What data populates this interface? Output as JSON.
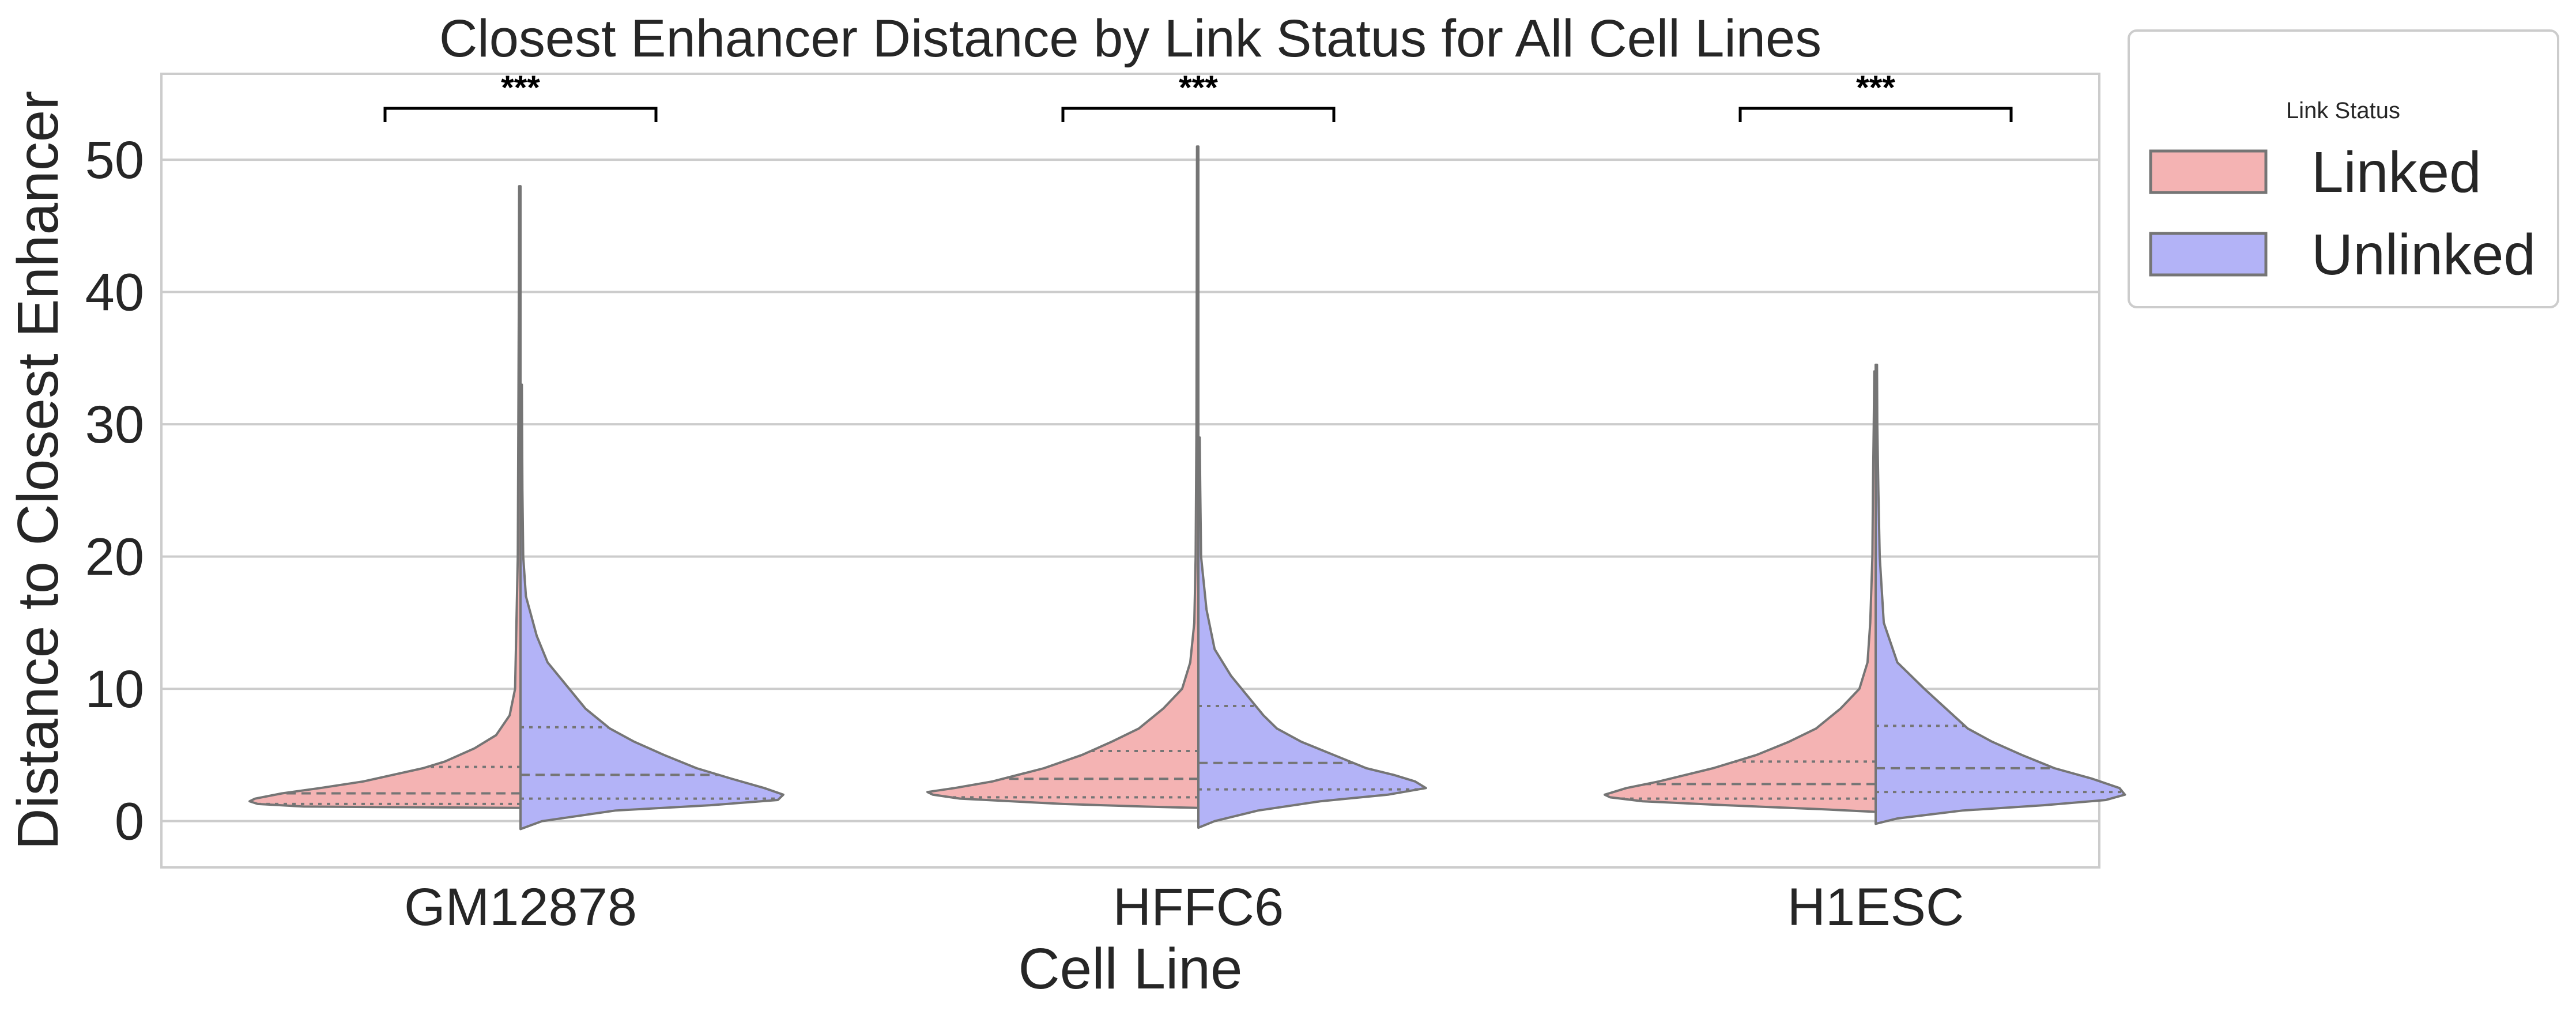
{
  "chart_data": {
    "type": "violin",
    "title": "Closest Enhancer Distance by Link Status for All Cell Lines",
    "xlabel": "Cell Line",
    "ylabel": "Distance to Closest Enhancer",
    "categories": [
      "GM12878",
      "HFFC6",
      "H1ESC"
    ],
    "yticks": [
      "0",
      "10",
      "20",
      "30",
      "40",
      "50"
    ],
    "ylim": [
      -3.5,
      56.5
    ],
    "grid": "horizontal",
    "split": true,
    "inner": "quartile",
    "significance": [
      "***",
      "***",
      "***"
    ],
    "legend": {
      "title": "Link Status",
      "placement": "outside-right-top",
      "entries": [
        "Linked",
        "Unlinked"
      ]
    },
    "colors": {
      "Linked": "#f4b3b3",
      "Unlinked": "#b3b3f7",
      "outline": "#757575",
      "grid": "#cccccc",
      "frame": "#cccccc"
    },
    "series": [
      {
        "name": "Linked",
        "violins": [
          {
            "category": "GM12878",
            "min": 1.0,
            "max": 48.0,
            "q1": 1.3,
            "median": 2.1,
            "q3": 4.1,
            "density": [
              [
                48,
                0.005
              ],
              [
                40,
                0.006
              ],
              [
                30,
                0.008
              ],
              [
                20,
                0.01
              ],
              [
                15,
                0.015
              ],
              [
                10,
                0.02
              ],
              [
                8,
                0.04
              ],
              [
                6.5,
                0.09
              ],
              [
                5.5,
                0.17
              ],
              [
                4.5,
                0.28
              ],
              [
                4,
                0.36
              ],
              [
                3.5,
                0.47
              ],
              [
                3,
                0.58
              ],
              [
                2.5,
                0.74
              ],
              [
                2.1,
                0.88
              ],
              [
                1.7,
                0.98
              ],
              [
                1.5,
                1.0
              ],
              [
                1.3,
                0.97
              ],
              [
                1.1,
                0.8
              ],
              [
                1.0,
                0.0
              ]
            ]
          },
          {
            "category": "HFFC6",
            "min": 1.0,
            "max": 51.0,
            "q1": 1.8,
            "median": 3.2,
            "q3": 5.3,
            "density": [
              [
                51,
                0.005
              ],
              [
                40,
                0.006
              ],
              [
                30,
                0.007
              ],
              [
                20,
                0.01
              ],
              [
                15,
                0.015
              ],
              [
                12,
                0.03
              ],
              [
                10,
                0.06
              ],
              [
                8.5,
                0.13
              ],
              [
                7,
                0.22
              ],
              [
                6,
                0.32
              ],
              [
                5,
                0.43
              ],
              [
                4,
                0.57
              ],
              [
                3,
                0.76
              ],
              [
                2.5,
                0.9
              ],
              [
                2.2,
                1.0
              ],
              [
                2,
                0.98
              ],
              [
                1.7,
                0.88
              ],
              [
                1.3,
                0.5
              ],
              [
                1.1,
                0.2
              ],
              [
                1.0,
                0.0
              ]
            ]
          },
          {
            "category": "H1ESC",
            "min": 0.7,
            "max": 34.0,
            "q1": 1.7,
            "median": 2.8,
            "q3": 4.5,
            "density": [
              [
                34,
                0.005
              ],
              [
                30,
                0.007
              ],
              [
                25,
                0.01
              ],
              [
                20,
                0.012
              ],
              [
                15,
                0.02
              ],
              [
                12,
                0.03
              ],
              [
                10,
                0.06
              ],
              [
                8.5,
                0.13
              ],
              [
                7,
                0.22
              ],
              [
                6,
                0.32
              ],
              [
                5,
                0.44
              ],
              [
                4,
                0.6
              ],
              [
                3,
                0.8
              ],
              [
                2.5,
                0.92
              ],
              [
                2,
                1.0
              ],
              [
                1.8,
                0.98
              ],
              [
                1.5,
                0.86
              ],
              [
                1.2,
                0.55
              ],
              [
                0.9,
                0.2
              ],
              [
                0.7,
                0.0
              ]
            ]
          }
        ]
      },
      {
        "name": "Unlinked",
        "violins": [
          {
            "category": "GM12878",
            "min": -0.6,
            "max": 33.0,
            "q1": 1.7,
            "median": 3.5,
            "q3": 7.1,
            "density": [
              [
                33,
                0.005
              ],
              [
                25,
                0.007
              ],
              [
                20,
                0.01
              ],
              [
                17,
                0.02
              ],
              [
                14,
                0.06
              ],
              [
                12,
                0.1
              ],
              [
                10,
                0.18
              ],
              [
                8.5,
                0.24
              ],
              [
                7,
                0.33
              ],
              [
                6,
                0.42
              ],
              [
                5,
                0.53
              ],
              [
                4,
                0.65
              ],
              [
                3.2,
                0.78
              ],
              [
                2.5,
                0.9
              ],
              [
                2,
                0.97
              ],
              [
                1.6,
                0.95
              ],
              [
                1.2,
                0.7
              ],
              [
                0.8,
                0.35
              ],
              [
                0,
                0.08
              ],
              [
                -0.6,
                0.0
              ]
            ]
          },
          {
            "category": "HFFC6",
            "min": -0.5,
            "max": 29.0,
            "q1": 2.4,
            "median": 4.4,
            "q3": 8.7,
            "density": [
              [
                29,
                0.005
              ],
              [
                25,
                0.007
              ],
              [
                20,
                0.01
              ],
              [
                16,
                0.03
              ],
              [
                13,
                0.06
              ],
              [
                11,
                0.12
              ],
              [
                9,
                0.2
              ],
              [
                8,
                0.24
              ],
              [
                7,
                0.29
              ],
              [
                6,
                0.38
              ],
              [
                5,
                0.5
              ],
              [
                4,
                0.62
              ],
              [
                3.5,
                0.72
              ],
              [
                3,
                0.8
              ],
              [
                2.5,
                0.84
              ],
              [
                2,
                0.7
              ],
              [
                1.5,
                0.45
              ],
              [
                0.8,
                0.22
              ],
              [
                0,
                0.06
              ],
              [
                -0.5,
                0.0
              ]
            ]
          },
          {
            "category": "H1ESC",
            "min": -0.2,
            "max": 34.5,
            "q1": 2.2,
            "median": 4.0,
            "q3": 7.2,
            "density": [
              [
                34.5,
                0.005
              ],
              [
                30,
                0.006
              ],
              [
                25,
                0.01
              ],
              [
                20,
                0.015
              ],
              [
                15,
                0.03
              ],
              [
                12,
                0.08
              ],
              [
                10,
                0.18
              ],
              [
                8.5,
                0.26
              ],
              [
                7,
                0.34
              ],
              [
                6,
                0.43
              ],
              [
                5,
                0.54
              ],
              [
                4,
                0.66
              ],
              [
                3.2,
                0.8
              ],
              [
                2.5,
                0.9
              ],
              [
                2,
                0.92
              ],
              [
                1.6,
                0.85
              ],
              [
                1.2,
                0.62
              ],
              [
                0.8,
                0.32
              ],
              [
                0.2,
                0.08
              ],
              [
                -0.2,
                0.0
              ]
            ]
          }
        ]
      }
    ]
  }
}
